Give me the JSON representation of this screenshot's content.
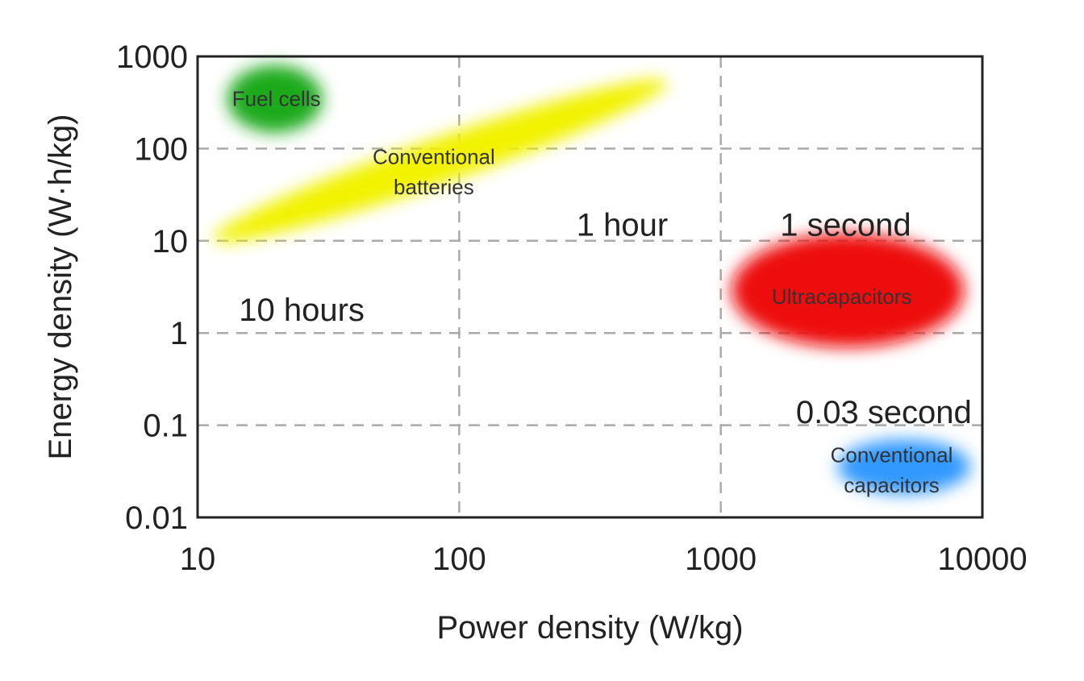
{
  "chart_data": {
    "type": "scatter",
    "title": "",
    "xlabel": "Power density (W/kg)",
    "ylabel": "Energy density (W·h/kg)",
    "xscale": "log",
    "yscale": "log",
    "xlim": [
      10,
      10000
    ],
    "ylim": [
      0.01,
      1000
    ],
    "grid": true,
    "x_ticks": [
      "10",
      "100",
      "1000",
      "10000"
    ],
    "x_tick_values": [
      10,
      100,
      1000,
      10000
    ],
    "y_ticks": [
      "1000",
      "100",
      "10",
      "1",
      "0.1",
      "0.01"
    ],
    "y_tick_values": [
      1000,
      100,
      10,
      1,
      0.1,
      0.01
    ],
    "regions": [
      {
        "label": "Fuel cells",
        "color": "#1aaa1a",
        "x_range": [
          13,
          30
        ],
        "y_range": [
          150,
          800
        ],
        "center": [
          20,
          350
        ]
      },
      {
        "label": "Conventional batteries",
        "color": "#f2f200",
        "x_range": [
          11,
          650
        ],
        "y_range": [
          10,
          550
        ],
        "center": [
          80,
          60
        ],
        "tilt": true
      },
      {
        "label": "Ultracapacitors",
        "color": "#ee1111",
        "x_range": [
          1100,
          8500
        ],
        "y_range": [
          0.7,
          12
        ],
        "center": [
          2900,
          2.5
        ]
      },
      {
        "label": "Conventional capacitors",
        "color": "#3399ff",
        "x_range": [
          2800,
          9000
        ],
        "y_range": [
          0.018,
          0.07
        ],
        "center": [
          4500,
          0.035
        ]
      }
    ],
    "annotations": [
      {
        "text": "10 hours",
        "x": 25,
        "y": 1.8
      },
      {
        "text": "1 hour",
        "x": 420,
        "y": 15
      },
      {
        "text": "1 second",
        "x": 3000,
        "y": 15
      },
      {
        "text": "0.03 second",
        "x": 4200,
        "y": 0.14
      }
    ]
  }
}
